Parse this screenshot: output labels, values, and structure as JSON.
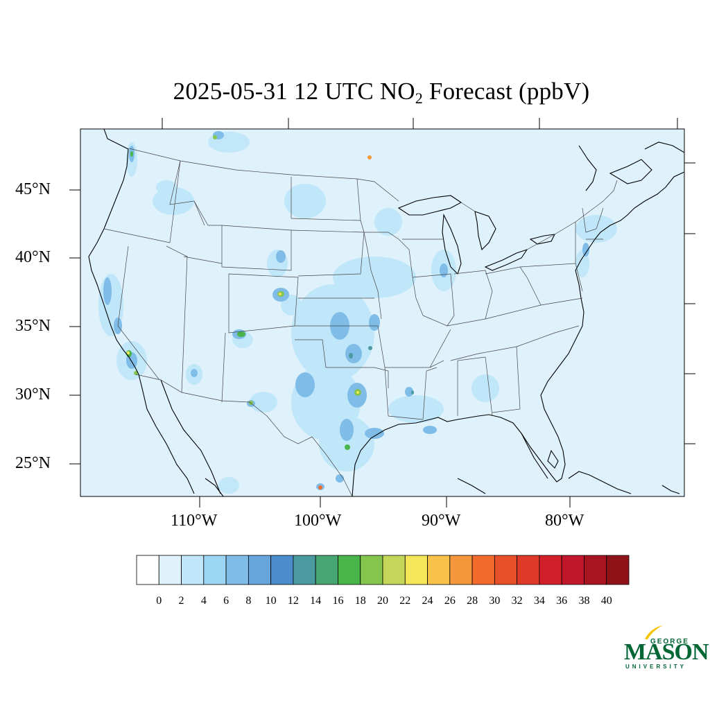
{
  "title": {
    "prefix": "2025-05-31 12 UTC NO",
    "subscript": "2",
    "suffix": " Forecast (ppbV)"
  },
  "map": {
    "region": "Contiguous United States",
    "background_color": "#dff1fb",
    "lat_labels": [
      "45°N",
      "40°N",
      "35°N",
      "30°N",
      "25°N"
    ],
    "lon_labels": [
      "110°W",
      "100°W",
      "90°W",
      "80°W"
    ]
  },
  "colorbar": {
    "labels": [
      "0",
      "2",
      "4",
      "6",
      "8",
      "10",
      "12",
      "14",
      "16",
      "18",
      "20",
      "22",
      "24",
      "26",
      "28",
      "30",
      "32",
      "34",
      "36",
      "38",
      "40"
    ],
    "colors": [
      "#ffffff",
      "#dff1fb",
      "#bfe6f9",
      "#9dd6f5",
      "#7fbde8",
      "#66a6dc",
      "#4a8ccc",
      "#4a9aa0",
      "#47a673",
      "#49b44a",
      "#86c54d",
      "#c4d659",
      "#f6e65a",
      "#f7c14a",
      "#f5983d",
      "#f26a2c",
      "#e8502a",
      "#df3a29",
      "#d21f2a",
      "#c0182a",
      "#a81520",
      "#8f1419"
    ]
  },
  "logo": {
    "line1": "GEORGE",
    "line2": "MASON",
    "line3": "UNIVERSITY",
    "color": "#006633",
    "accent": "#f2c500"
  }
}
